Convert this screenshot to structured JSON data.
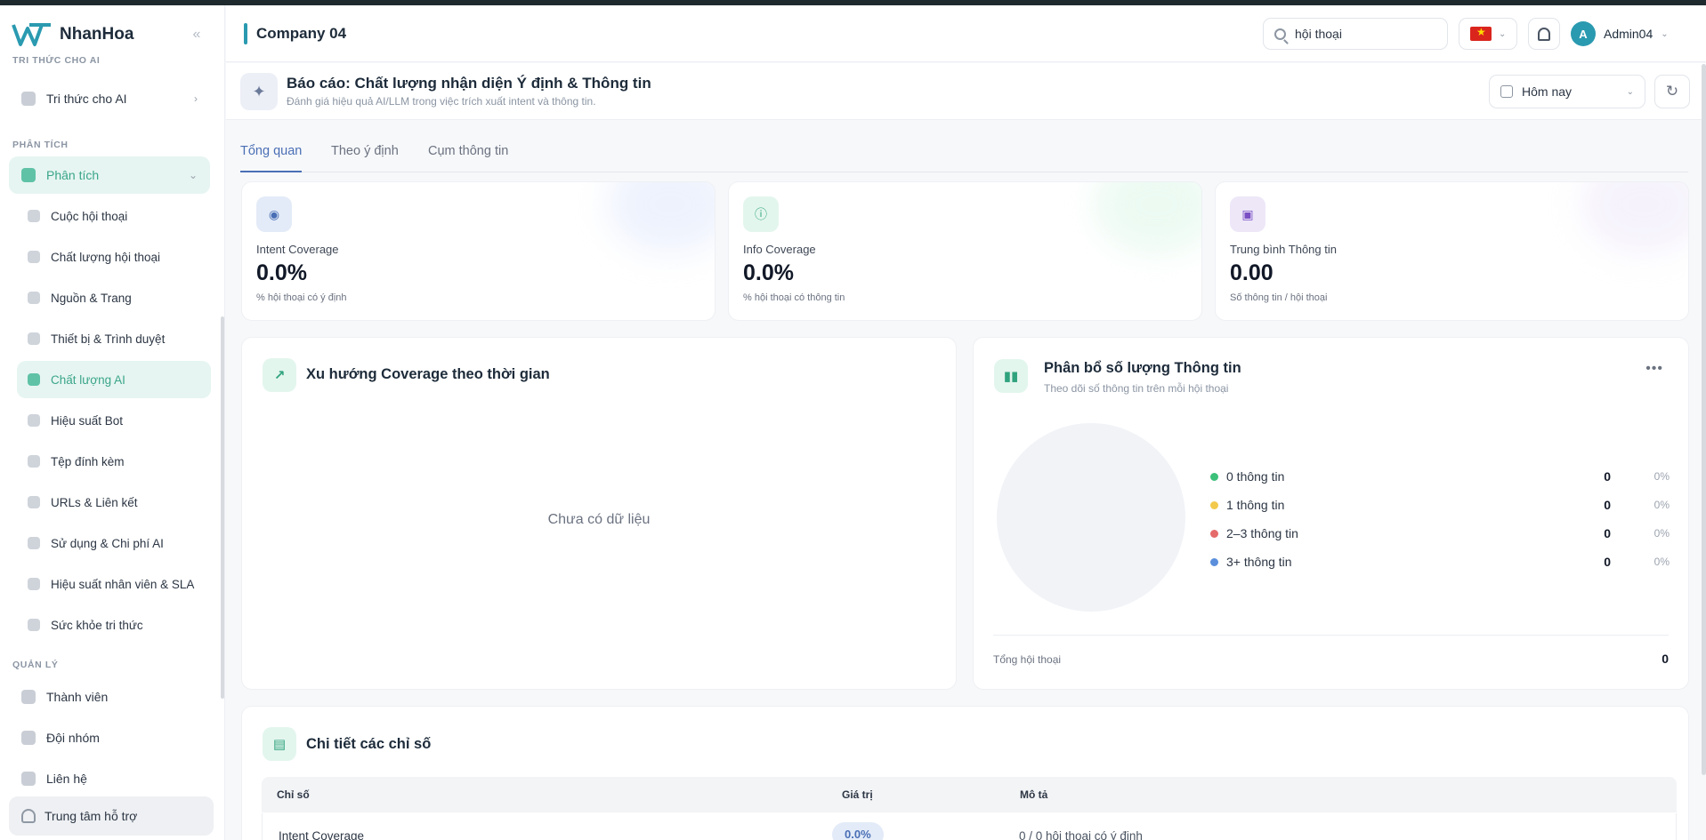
{
  "brand": {
    "name": "NhanHoa"
  },
  "sidebar": {
    "sections": [
      {
        "label": "TRI THỨC CHO AI"
      },
      {
        "label": "PHÂN TÍCH"
      },
      {
        "label": "QUẢN LÝ"
      }
    ],
    "knowledge_item": "Tri thức cho AI",
    "analytics_group": "Phân tích",
    "sub_items": [
      {
        "label": "Cuộc hội thoại"
      },
      {
        "label": "Chất lượng hội thoại"
      },
      {
        "label": "Nguồn & Trang"
      },
      {
        "label": "Thiết bị & Trình duyệt"
      },
      {
        "label": "Chất lượng AI"
      },
      {
        "label": "Hiệu suất Bot"
      },
      {
        "label": "Tệp đính kèm"
      },
      {
        "label": "URLs & Liên kết"
      },
      {
        "label": "Sử dụng & Chi phí AI"
      },
      {
        "label": "Hiệu suất nhân viên & SLA"
      },
      {
        "label": "Sức khỏe tri thức"
      }
    ],
    "manage_items": [
      {
        "label": "Thành viên"
      },
      {
        "label": "Đội nhóm"
      },
      {
        "label": "Liên hệ"
      }
    ],
    "support": "Trung tâm hỗ trợ"
  },
  "header": {
    "company": "Company 04",
    "search_value": "hội thoại",
    "user": "Admin04",
    "avatar_initial": "A"
  },
  "report": {
    "title": "Báo cáo: Chất lượng nhận diện Ý định & Thông tin",
    "subtitle": "Đánh giá hiệu quả AI/LLM trong việc trích xuất intent và thông tin.",
    "date_range": "Hôm nay"
  },
  "tabs": [
    {
      "label": "Tổng quan"
    },
    {
      "label": "Theo ý định"
    },
    {
      "label": "Cụm thông tin"
    }
  ],
  "stats": [
    {
      "label": "Intent Coverage",
      "value": "0.0%",
      "sub": "% hội thoại có ý định",
      "color": "#e3ebf8"
    },
    {
      "label": "Info Coverage",
      "value": "0.0%",
      "sub": "% hội thoại có thông tin",
      "color": "#e3f6ee"
    },
    {
      "label": "Trung bình Thông tin",
      "value": "0.00",
      "sub": "Số thông tin / hội thoại",
      "color": "#ede7f8"
    }
  ],
  "trend": {
    "title": "Xu hướng Coverage theo thời gian",
    "empty": "Chưa có dữ liệu"
  },
  "distribution": {
    "title": "Phân bổ số lượng Thông tin",
    "subtitle": "Theo dõi số thông tin trên mỗi hội thoại",
    "items": [
      {
        "label": "0 thông tin",
        "value": "0",
        "pct": "0%",
        "color": "#3cc07a"
      },
      {
        "label": "1 thông tin",
        "value": "0",
        "pct": "0%",
        "color": "#f2c94c"
      },
      {
        "label": "2–3 thông tin",
        "value": "0",
        "pct": "0%",
        "color": "#e56a6a"
      },
      {
        "label": "3+ thông tin",
        "value": "0",
        "pct": "0%",
        "color": "#5b8fdc"
      }
    ],
    "total_label": "Tổng hội thoại",
    "total_value": "0"
  },
  "details": {
    "title": "Chi tiết các chỉ số",
    "columns": [
      "Chỉ số",
      "Giá trị",
      "Mô tả"
    ],
    "rows": [
      {
        "metric": "Intent Coverage",
        "value": "0.0%",
        "desc": "0 / 0 hội thoại có ý định"
      }
    ]
  }
}
